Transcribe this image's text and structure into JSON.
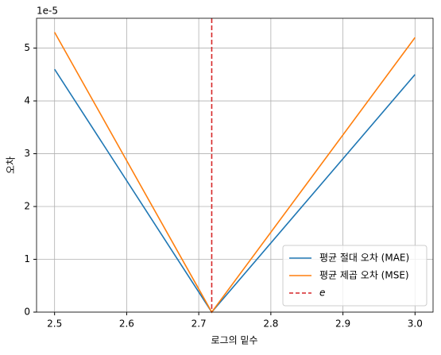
{
  "chart_data": {
    "type": "line",
    "x_label": "로그의 밑수",
    "y_label": "오차",
    "y_offset_label": "1e-5",
    "x": [
      2.5,
      2.718,
      3.0
    ],
    "series": [
      {
        "name": "평균 절대 오차 (MAE)",
        "color": "#1f77b4",
        "values": [
          4.6,
          0,
          4.5
        ]
      },
      {
        "name": "평균 제곱 오차 (MSE)",
        "color": "#ff7f0e",
        "values": [
          5.3,
          0,
          5.2
        ]
      }
    ],
    "vline": {
      "name": "e",
      "x": 2.718,
      "color": "#d62728"
    },
    "xlim": [
      2.475,
      3.025
    ],
    "ylim": [
      0,
      5.565
    ],
    "xticks": [
      2.5,
      2.6,
      2.7,
      2.8,
      2.9,
      {
        "value": 3,
        "label": "3.0"
      }
    ],
    "yticks": [
      0,
      1,
      2,
      3,
      4,
      5
    ],
    "grid": true,
    "legend": "lower right"
  }
}
